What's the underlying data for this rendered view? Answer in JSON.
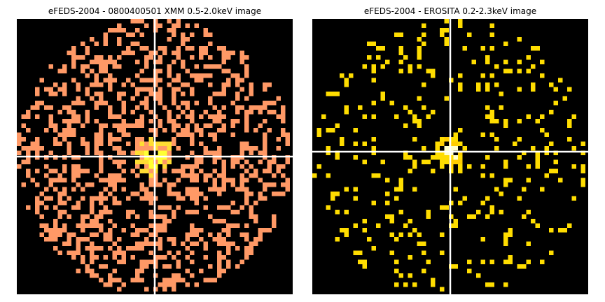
{
  "panels": [
    {
      "title": "eFEDS-2004 - 0800400501 XMM 0.5-2.0keV image",
      "background_color": "#000000",
      "pixel_color": "#ff9966",
      "bright_color": "#ffff33",
      "mid_color": "#ffdd33",
      "crosshair_color": "#ffffff"
    },
    {
      "title": "eFEDS-2004 -  EROSITA 0.2-2.3keV image",
      "background_color": "#000000",
      "pixel_color": "#ffdd00",
      "bright_color": "#ffffcc",
      "mid_color": "#ffcc00",
      "crosshair_color": "#ffffff"
    }
  ]
}
